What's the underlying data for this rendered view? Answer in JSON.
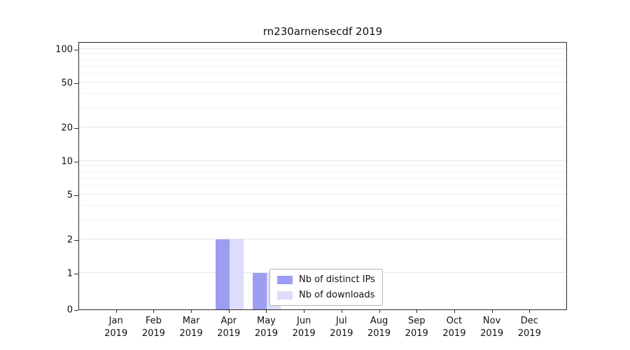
{
  "chart_data": {
    "type": "bar",
    "title": "rn230arnensecdf 2019",
    "year_label": "2019",
    "categories": [
      "Jan",
      "Feb",
      "Mar",
      "Apr",
      "May",
      "Jun",
      "Jul",
      "Aug",
      "Sep",
      "Oct",
      "Nov",
      "Dec"
    ],
    "series": [
      {
        "name": "Nb of distinct IPs",
        "color": "#9d9df2",
        "values": [
          0,
          0,
          0,
          2,
          1,
          0,
          0,
          0,
          0,
          0,
          0,
          0
        ]
      },
      {
        "name": "Nb of downloads",
        "color": "#dddcfb",
        "values": [
          0,
          0,
          0,
          2,
          1,
          0,
          0,
          0,
          0,
          0,
          0,
          0
        ]
      }
    ],
    "yscale": "symlog",
    "yticks": [
      0,
      1,
      2,
      5,
      10,
      20,
      50,
      100
    ],
    "ylim_top": 120,
    "grid": "horizontal",
    "legend_position": "inside-lower-center-left",
    "colors": {
      "axis": "#2b2b2b",
      "gridline_major": "#e5e5e5",
      "gridline_minor": "#f2f2f2",
      "legend_border": "#b3b3b3"
    }
  }
}
